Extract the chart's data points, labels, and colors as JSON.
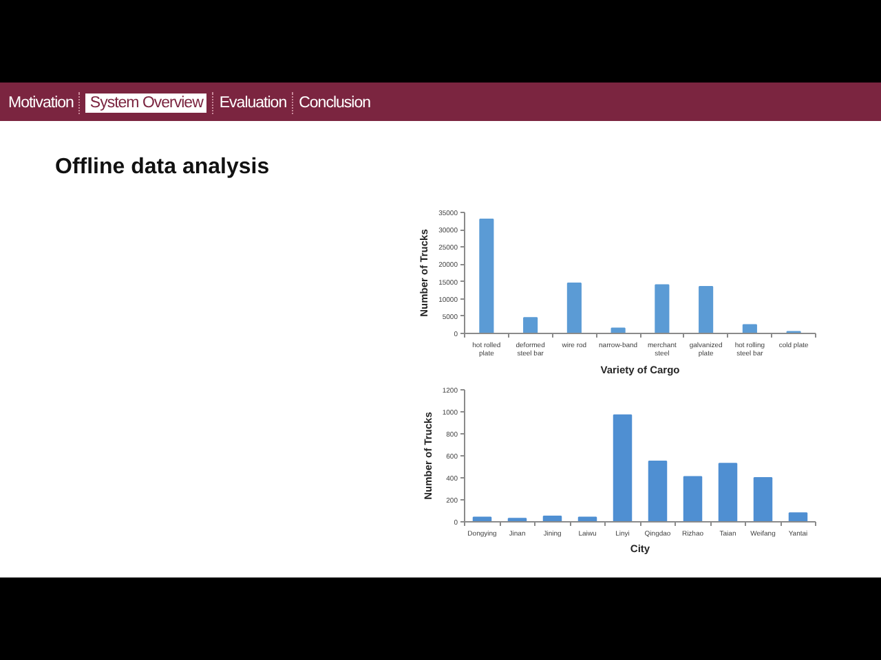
{
  "chart_data": [
    {
      "type": "other",
      "title": "Offline data analysis",
      "annotations": [
        "Motivation",
        "System Overview",
        "Evaluation",
        "Conclusion"
      ]
    },
    {
      "type": "bar",
      "categories": [
        "hot rolled plate",
        "deformed steel bar",
        "wire rod",
        "narrow-band",
        "merchant steel",
        "galvanized plate",
        "hot rolling steel bar",
        "cold plate"
      ],
      "values": [
        33000,
        4500,
        14500,
        1500,
        14000,
        13500,
        2500,
        500
      ],
      "color": "#5b9bd5",
      "xlabel": "Variety of Cargo",
      "ylabel": "Number of Trucks",
      "ylim": [
        0,
        35000
      ],
      "yticks": [
        0,
        5000,
        10000,
        15000,
        20000,
        25000,
        30000,
        35000
      ]
    },
    {
      "type": "bar",
      "categories": [
        "Dongying",
        "Jinan",
        "Jining",
        "Laiwu",
        "Linyi",
        "Qingdao",
        "Rizhao",
        "Taian",
        "Weifang",
        "Yantai"
      ],
      "values": [
        40,
        30,
        50,
        40,
        970,
        550,
        410,
        530,
        400,
        80
      ],
      "color": "#4f8fd2",
      "xlabel": "City",
      "ylabel": "Number of Trucks",
      "ylim": [
        0,
        1200
      ],
      "yticks": [
        0,
        200,
        400,
        600,
        800,
        1000,
        1200
      ]
    }
  ]
}
